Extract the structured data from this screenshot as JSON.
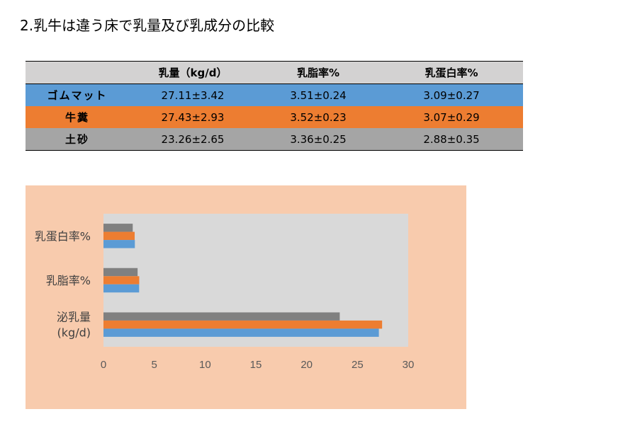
{
  "title": "2.乳牛は違う床で乳量及び乳成分の比較",
  "table": {
    "headers": [
      "",
      "乳量（kg/d）",
      "乳脂率%",
      "乳蛋白率%"
    ],
    "rows": [
      {
        "name": "ゴムマット",
        "color": "#5b9bd5",
        "values": [
          "27.11±3.42",
          "3.51±0.24",
          "3.09±0.27"
        ]
      },
      {
        "name": "牛糞",
        "color": "#ed7d31",
        "values": [
          "27.43±2.93",
          "3.52±0.23",
          "3.07±0.29"
        ]
      },
      {
        "name": "土砂",
        "color": "#a5a5a5",
        "values": [
          "23.26±2.65",
          "3.36±0.25",
          "2.88±0.35"
        ]
      }
    ]
  },
  "chart_data": {
    "type": "bar",
    "orientation": "horizontal",
    "categories": [
      "乳蛋白率%",
      "乳脂率%",
      "泌乳量\n(kg/d)"
    ],
    "series": [
      {
        "values": [
          2.88,
          3.36,
          23.26
        ],
        "color": "#808080"
      },
      {
        "values": [
          3.07,
          3.52,
          27.43
        ],
        "color": "#ed7d31"
      },
      {
        "values": [
          3.09,
          3.51,
          27.11
        ],
        "color": "#5b9bd5"
      }
    ],
    "xlim": [
      0,
      30
    ],
    "xticks": [
      "0",
      "5",
      "10",
      "15",
      "20",
      "25",
      "30"
    ],
    "grid": false,
    "plot_background": "#d9d9d9",
    "panel_background": "#f8cbad"
  }
}
